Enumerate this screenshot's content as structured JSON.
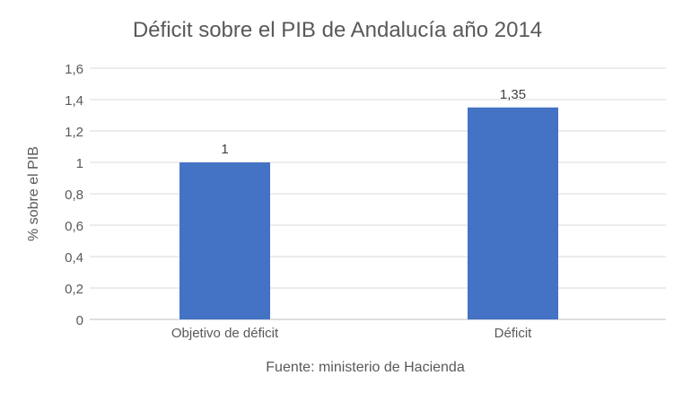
{
  "chart_data": {
    "type": "bar",
    "title": "Déficit sobre el PIB de Andalucía año 2014",
    "xlabel": "",
    "ylabel": "% sobre el PIB",
    "categories": [
      "Objetivo de déficit",
      "Déficit"
    ],
    "values": [
      1,
      1.35
    ],
    "data_labels": [
      "1",
      "1,35"
    ],
    "ylim": [
      0,
      1.6
    ],
    "yticks": [
      "0",
      "0,2",
      "0,4",
      "0,6",
      "0,8",
      "1",
      "1,2",
      "1,4",
      "1,6"
    ],
    "grid": true,
    "source": "Fuente: ministerio de Hacienda",
    "bar_color": "#4472c4"
  }
}
